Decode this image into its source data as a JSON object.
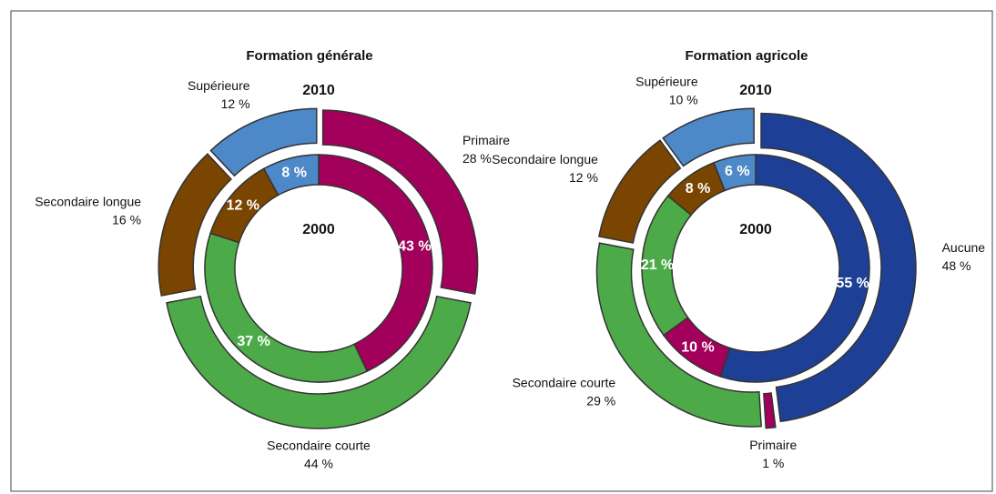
{
  "chart_data": [
    {
      "type": "donut",
      "title": "Formation générale",
      "categories": [
        "Primaire",
        "Secondaire courte",
        "Secondaire longue",
        "Supérieure"
      ],
      "colors": [
        "#a3005b",
        "#4cab48",
        "#7a4500",
        "#4d88c8"
      ],
      "series": [
        {
          "name": "2010",
          "values": [
            28,
            44,
            16,
            12
          ],
          "value_labels": [
            "28 %",
            "44 %",
            "16 %",
            "12 %"
          ]
        },
        {
          "name": "2000",
          "values": [
            43,
            37,
            12,
            8
          ],
          "value_labels": [
            "43 %",
            "37 %",
            "12 %",
            "8 %"
          ]
        }
      ]
    },
    {
      "type": "donut",
      "title": "Formation agricole",
      "categories": [
        "Aucune",
        "Primaire",
        "Secondaire courte",
        "Secondaire longue",
        "Supérieure"
      ],
      "colors": [
        "#1d4096",
        "#a3005b",
        "#4cab48",
        "#7a4500",
        "#4d88c8"
      ],
      "series": [
        {
          "name": "2010",
          "values": [
            48,
            1,
            29,
            12,
            10
          ],
          "value_labels": [
            "48 %",
            "1 %",
            "29 %",
            "12 %",
            "10 %"
          ]
        },
        {
          "name": "2000",
          "values": [
            55,
            10,
            21,
            8,
            6
          ],
          "value_labels": [
            "55 %",
            "10 %",
            "21 %",
            "8 %",
            "6 %"
          ]
        }
      ]
    }
  ]
}
